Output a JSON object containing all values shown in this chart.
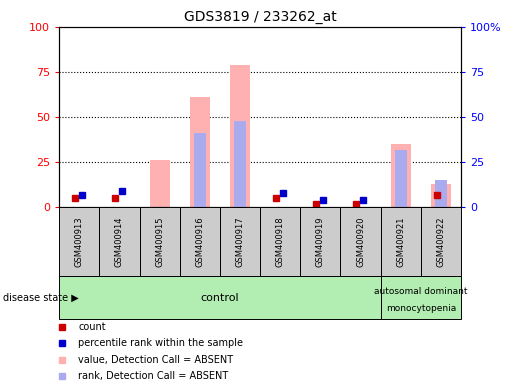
{
  "title": "GDS3819 / 233262_at",
  "samples": [
    "GSM400913",
    "GSM400914",
    "GSM400915",
    "GSM400916",
    "GSM400917",
    "GSM400918",
    "GSM400919",
    "GSM400920",
    "GSM400921",
    "GSM400922"
  ],
  "value_absent": [
    0,
    0,
    26,
    61,
    79,
    0,
    0,
    0,
    35,
    13
  ],
  "rank_absent": [
    0,
    0,
    0,
    41,
    48,
    0,
    0,
    0,
    32,
    15
  ],
  "count": [
    5,
    5,
    0,
    0,
    0,
    5,
    2,
    2,
    0,
    7
  ],
  "percentile_rank": [
    7,
    9,
    0,
    0,
    0,
    8,
    4,
    4,
    0,
    0
  ],
  "ylim": [
    0,
    100
  ],
  "yticks": [
    0,
    25,
    50,
    75,
    100
  ],
  "ytick_labels_left": [
    "0",
    "25",
    "50",
    "75",
    "100"
  ],
  "ytick_labels_right": [
    "0",
    "25",
    "50",
    "75",
    "100%"
  ],
  "control_samples": 8,
  "disease_label_line1": "autosomal dominant",
  "disease_label_line2": "monocytopenia",
  "control_label": "control",
  "disease_state_label": "disease state",
  "count_color": "#cc0000",
  "rank_color": "#0000cc",
  "value_absent_color": "#ffb0b0",
  "rank_absent_color": "#aaaaee",
  "xticklabel_bg": "#cccccc",
  "control_bg": "#b2eeb2",
  "disease_bg": "#b2eeb2",
  "title_fontsize": 10,
  "axis_fontsize": 8,
  "legend_fontsize": 8
}
